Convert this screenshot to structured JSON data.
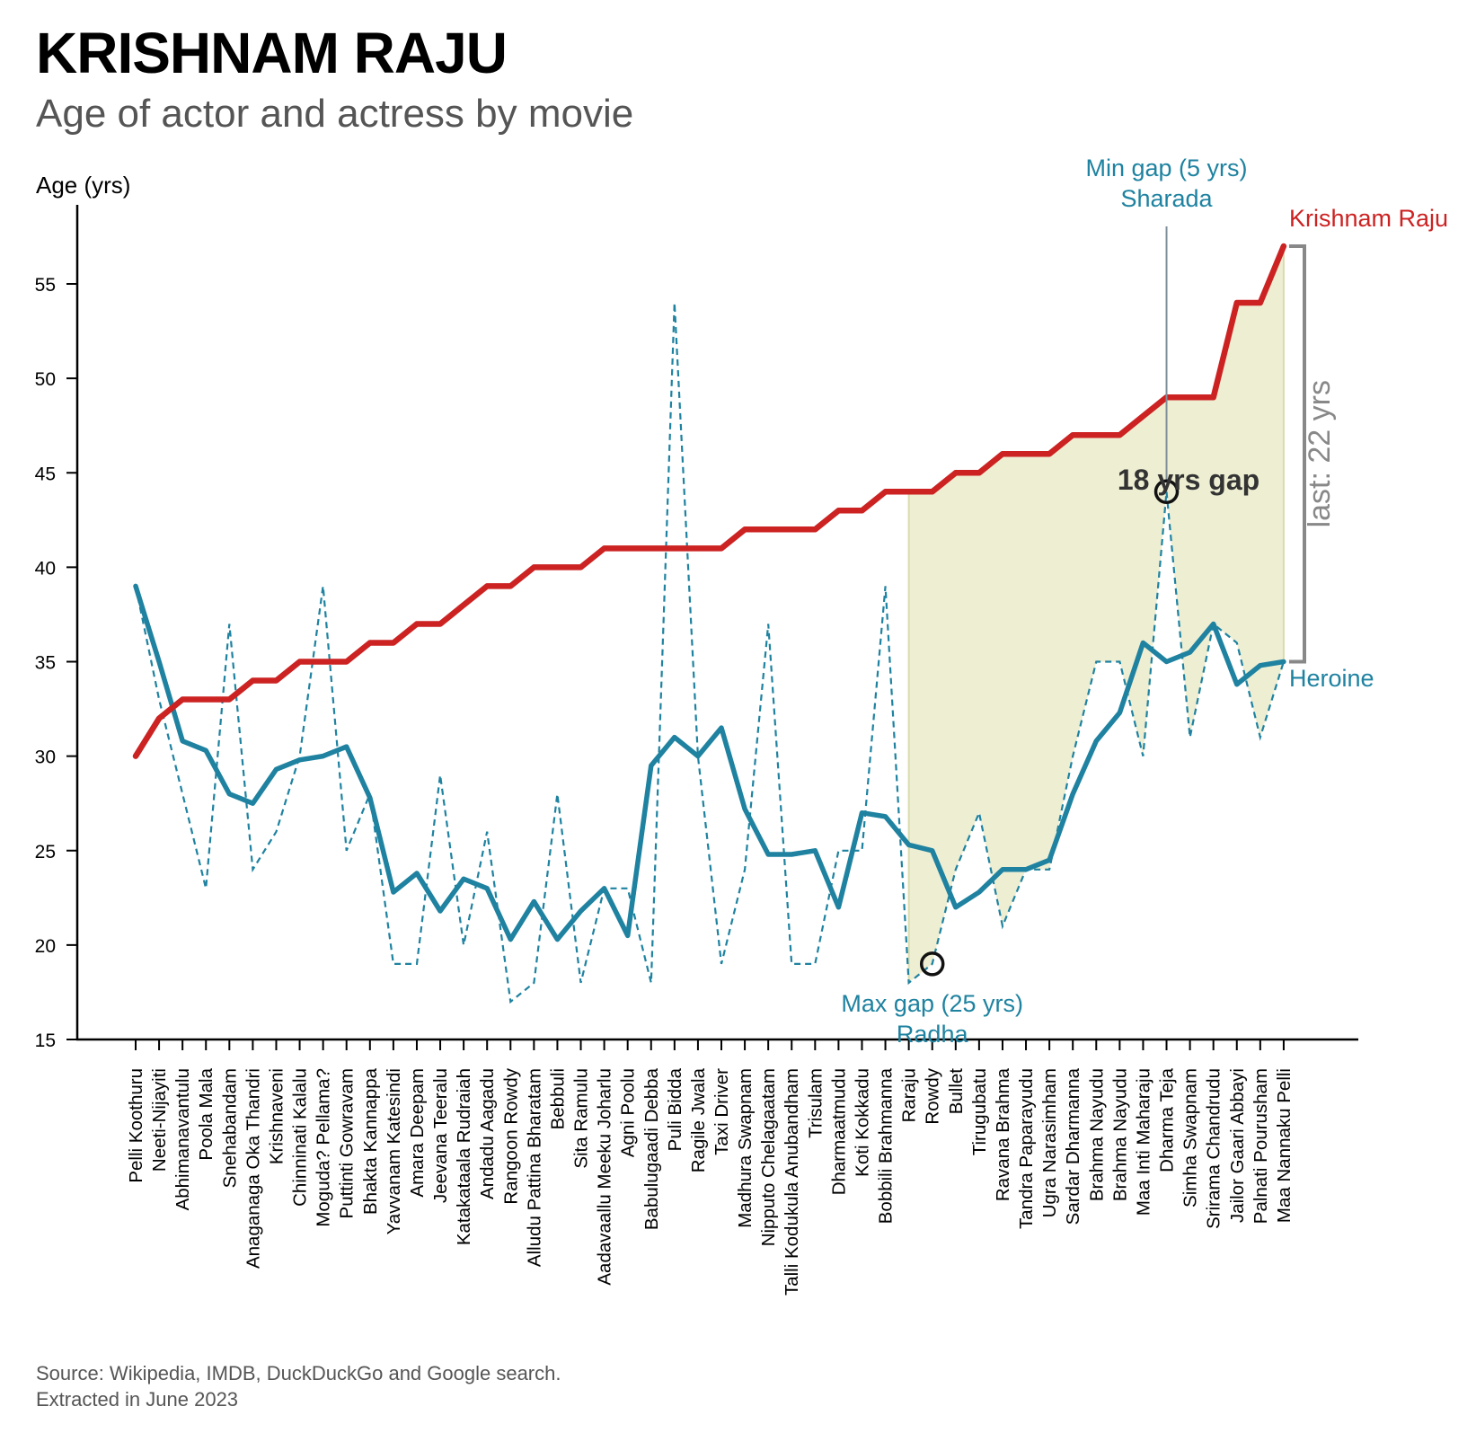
{
  "header": {
    "title": "KRISHNAM RAJU",
    "subtitle": "Age of actor and actress by movie"
  },
  "footer": {
    "source_line": "Source: Wikipedia, IMDB, DuckDuckGo and Google search.",
    "extracted_line": "Extracted in June 2023"
  },
  "chart_data": {
    "type": "line",
    "ylabel": "Age (yrs)",
    "ylim": [
      15,
      58
    ],
    "yticks": [
      15,
      20,
      25,
      30,
      35,
      40,
      45,
      50,
      55
    ],
    "categories": [
      "Pelli Koothuru",
      "Neeti-Nijayiti",
      "Abhimanavantulu",
      "Poola Mala",
      "Snehabandam",
      "Anaganaga Oka Thandri",
      "Krishnaveni",
      "Chinninati Kalalu",
      "Moguda? Pellama?",
      "Puttinti Gowravam",
      "Bhakta Kannappa",
      "Yavvanam Katesindi",
      "Amara Deepam",
      "Jeevana Teeralu",
      "Katakataala Rudraiah",
      "Andadu Aagadu",
      "Rangoon Rowdy",
      "Alludu Pattina Bharatam",
      "Bebbuli",
      "Sita Ramulu",
      "Aadavaallu Meeku Joharlu",
      "Agni Poolu",
      "Babulugaadi Debba",
      "Puli Bidda",
      "Ragile Jwala",
      "Taxi Driver",
      "Madhura Swapnam",
      "Nipputo Chelagaatam",
      "Talli Kodukula Anubandham",
      "Trisulam",
      "Dharmaatmudu",
      "Koti Kokkadu",
      "Bobbili Brahmanna",
      "Raraju",
      "Rowdy",
      "Bullet",
      "Tirugubatu",
      "Ravana Brahma",
      "Tandra Paparayudu",
      "Ugra Narasimham",
      "Sardar Dharmanna",
      "Brahma Nayudu",
      "Brahma Nayudu",
      "Maa Inti Maharaju",
      "Dharma Teja",
      "Simha Swapnam",
      "Srirama Chandrudu",
      "Jailor Gaari Abbayi",
      "Palnati Pourusham",
      "Maa Nannaku Pelli"
    ],
    "series": [
      {
        "name": "Krishnam Raju",
        "color": "#cc2222",
        "values": [
          30,
          32,
          33,
          33,
          33,
          34,
          34,
          35,
          35,
          35,
          36,
          36,
          37,
          37,
          38,
          39,
          39,
          40,
          40,
          40,
          41,
          41,
          41,
          41,
          41,
          41,
          42,
          42,
          42,
          42,
          43,
          43,
          44,
          44,
          44,
          45,
          45,
          46,
          46,
          46,
          47,
          47,
          47,
          48,
          49,
          49,
          49,
          54,
          54,
          57
        ]
      },
      {
        "name": "Heroine",
        "color": "#1e82a0",
        "values": [
          39,
          35,
          30.8,
          30.3,
          28,
          27.5,
          29.3,
          29.8,
          30,
          30.5,
          27.8,
          22.8,
          23.8,
          21.8,
          23.5,
          23,
          20.3,
          22.3,
          20.3,
          21.8,
          23,
          20.5,
          29.5,
          31,
          30,
          31.5,
          27.2,
          24.8,
          24.8,
          25,
          22,
          27,
          26.8,
          25.3,
          25,
          22,
          22.8,
          24,
          24,
          24.5,
          28,
          30.8,
          32.3,
          36,
          35,
          35.5,
          37,
          33.8,
          34.8,
          35
        ]
      },
      {
        "name": "Heroine age",
        "values": [
          39,
          33,
          28,
          23,
          37,
          24,
          26,
          30,
          39,
          25,
          28,
          19,
          19,
          29,
          20,
          26,
          17,
          18,
          28,
          18,
          23,
          23,
          18,
          54,
          30,
          19,
          24,
          37,
          19,
          19,
          25,
          25,
          39,
          18,
          19,
          24,
          27,
          21,
          24,
          24,
          30,
          35,
          35,
          30,
          44,
          31,
          37,
          36,
          31,
          35
        ]
      }
    ],
    "annotations": {
      "series_label_actor": "Krishnam Raju",
      "series_label_heroine": "Heroine",
      "min_gap_title": "Min gap (5 yrs)",
      "min_gap_name": "Sharada",
      "max_gap_title": "Max gap (25 yrs)",
      "max_gap_name": "Radha",
      "gap_label": "18 yrs gap",
      "last_label": "last: 22 yrs",
      "shade_from_index": 33
    },
    "colors": {
      "actor": "#cc2222",
      "heroine": "#1e82a0",
      "shade": "#eeeed3",
      "bracket": "#888888"
    },
    "grid": false
  }
}
